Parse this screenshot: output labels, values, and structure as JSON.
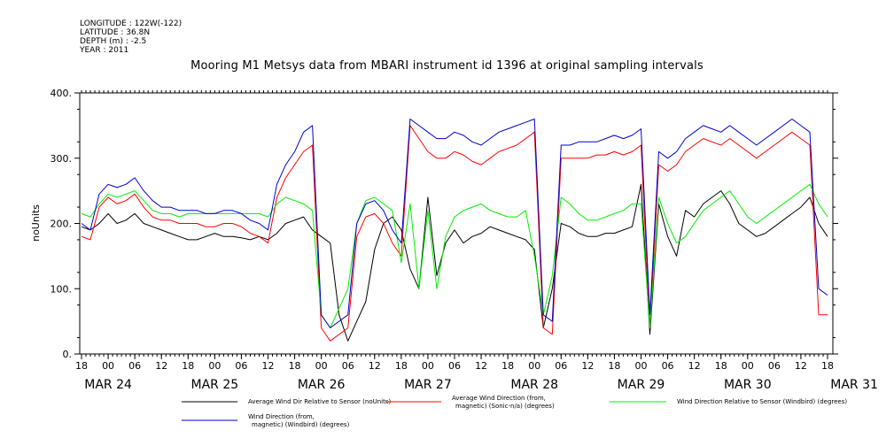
{
  "header": {
    "longitude": "LONGITUDE : 122W(-122)",
    "latitude": "LATITUDE : 36.8N",
    "depth": "DEPTH (m) : -2.5",
    "year": "YEAR : 2011"
  },
  "chart_data": {
    "type": "line",
    "title": "Mooring M1 Metsys data from MBARI instrument id 1396 at original sampling intervals",
    "ylabel": "noUnits",
    "ylim": [
      0,
      400
    ],
    "y_ticks": [
      0,
      100,
      200,
      300,
      400
    ],
    "y_tick_labels": [
      "0.",
      "100.",
      "200.",
      "300.",
      "400."
    ],
    "xlim_hours": [
      0,
      168
    ],
    "x_tick_labels": [
      "18",
      "00",
      "06",
      "12",
      "18",
      "00",
      "06",
      "12",
      "18",
      "00",
      "06",
      "12",
      "18",
      "00",
      "06",
      "12",
      "18",
      "00",
      "06",
      "12",
      "18",
      "00",
      "06",
      "12",
      "18",
      "00",
      "06",
      "12",
      "18"
    ],
    "date_labels": [
      {
        "label": "MAR 24",
        "hour": 6
      },
      {
        "label": "MAR 25",
        "hour": 30
      },
      {
        "label": "MAR 26",
        "hour": 54
      },
      {
        "label": "MAR 27",
        "hour": 78
      },
      {
        "label": "MAR 28",
        "hour": 102
      },
      {
        "label": "MAR 29",
        "hour": 126
      },
      {
        "label": "MAR 30",
        "hour": 150
      },
      {
        "label": "MAR 31",
        "hour": 174
      }
    ],
    "legend_position": "bottom",
    "series": [
      {
        "name": "Average Wind Dir Relative to Sensor (noUnits)",
        "color": "#000000",
        "x": [
          0,
          2,
          4,
          6,
          8,
          10,
          12,
          14,
          16,
          18,
          20,
          22,
          24,
          26,
          28,
          30,
          32,
          34,
          36,
          38,
          40,
          42,
          44,
          46,
          48,
          50,
          52,
          54,
          56,
          58,
          60,
          62,
          64,
          66,
          68,
          70,
          72,
          74,
          76,
          78,
          80,
          82,
          84,
          86,
          88,
          90,
          92,
          94,
          96,
          98,
          100,
          102,
          104,
          106,
          108,
          110,
          112,
          114,
          116,
          118,
          120,
          122,
          124,
          126,
          128,
          130,
          132,
          134,
          136,
          138,
          140,
          142,
          144,
          146,
          148,
          150,
          152,
          154,
          156,
          158,
          160,
          162,
          164,
          166,
          168
        ],
        "values": [
          195,
          190,
          200,
          215,
          200,
          205,
          215,
          200,
          195,
          190,
          185,
          180,
          175,
          175,
          180,
          185,
          180,
          180,
          178,
          175,
          180,
          175,
          185,
          200,
          205,
          210,
          190,
          180,
          170,
          60,
          20,
          50,
          80,
          160,
          200,
          210,
          190,
          130,
          100,
          240,
          120,
          170,
          190,
          170,
          180,
          185,
          195,
          190,
          185,
          180,
          175,
          160,
          40,
          100,
          200,
          195,
          185,
          180,
          180,
          185,
          185,
          190,
          195,
          260,
          30,
          230,
          180,
          150,
          220,
          210,
          230,
          240,
          250,
          230,
          200,
          190,
          180,
          185,
          195,
          205,
          215,
          225,
          240,
          200,
          180
        ]
      },
      {
        "name": "Average Wind Direction (from, magnetic) (Sonic-n/a) (degrees)",
        "color": "#ff0000",
        "x": [
          0,
          2,
          4,
          6,
          8,
          10,
          12,
          14,
          16,
          18,
          20,
          22,
          24,
          26,
          28,
          30,
          32,
          34,
          36,
          38,
          40,
          42,
          44,
          46,
          48,
          50,
          52,
          54,
          56,
          58,
          60,
          62,
          64,
          66,
          68,
          70,
          72,
          74,
          76,
          78,
          80,
          82,
          84,
          86,
          88,
          90,
          92,
          94,
          96,
          98,
          100,
          102,
          104,
          106,
          108,
          110,
          112,
          114,
          116,
          118,
          120,
          122,
          124,
          126,
          128,
          130,
          132,
          134,
          136,
          138,
          140,
          142,
          144,
          146,
          148,
          150,
          152,
          154,
          156,
          158,
          160,
          162,
          164,
          166,
          168
        ],
        "values": [
          180,
          175,
          225,
          240,
          230,
          235,
          245,
          225,
          210,
          205,
          205,
          200,
          200,
          200,
          195,
          195,
          200,
          200,
          195,
          185,
          180,
          170,
          240,
          270,
          290,
          310,
          320,
          40,
          20,
          30,
          40,
          180,
          210,
          215,
          200,
          170,
          150,
          350,
          330,
          310,
          300,
          300,
          310,
          305,
          295,
          290,
          300,
          310,
          315,
          320,
          330,
          340,
          40,
          30,
          300,
          300,
          300,
          300,
          305,
          305,
          310,
          305,
          310,
          320,
          40,
          290,
          280,
          290,
          310,
          320,
          330,
          325,
          320,
          330,
          320,
          310,
          300,
          310,
          320,
          330,
          340,
          330,
          320,
          60,
          60
        ]
      },
      {
        "name": "Wind Direction Relative to Sensor (Windbird) (degrees)",
        "color": "#00ee00",
        "x": [
          0,
          2,
          4,
          6,
          8,
          10,
          12,
          14,
          16,
          18,
          20,
          22,
          24,
          26,
          28,
          30,
          32,
          34,
          36,
          38,
          40,
          42,
          44,
          46,
          48,
          50,
          52,
          54,
          56,
          58,
          60,
          62,
          64,
          66,
          68,
          70,
          72,
          74,
          76,
          78,
          80,
          82,
          84,
          86,
          88,
          90,
          92,
          94,
          96,
          98,
          100,
          102,
          104,
          106,
          108,
          110,
          112,
          114,
          116,
          118,
          120,
          122,
          124,
          126,
          128,
          130,
          132,
          134,
          136,
          138,
          140,
          142,
          144,
          146,
          148,
          150,
          152,
          154,
          156,
          158,
          160,
          162,
          164,
          166,
          168
        ],
        "values": [
          215,
          210,
          230,
          245,
          240,
          245,
          250,
          235,
          220,
          215,
          215,
          210,
          215,
          215,
          215,
          215,
          215,
          215,
          215,
          215,
          215,
          210,
          230,
          240,
          235,
          230,
          220,
          60,
          40,
          70,
          100,
          200,
          235,
          240,
          230,
          220,
          140,
          230,
          100,
          220,
          100,
          180,
          210,
          220,
          225,
          230,
          220,
          215,
          210,
          210,
          220,
          150,
          60,
          120,
          240,
          230,
          215,
          205,
          205,
          210,
          215,
          220,
          230,
          230,
          40,
          240,
          200,
          170,
          180,
          200,
          220,
          230,
          240,
          250,
          230,
          210,
          200,
          210,
          220,
          230,
          240,
          250,
          260,
          230,
          210
        ]
      },
      {
        "name": "Wind Direction (from, magnetic) (Windbird) (degrees)",
        "color": "#0000cc",
        "x": [
          0,
          2,
          4,
          6,
          8,
          10,
          12,
          14,
          16,
          18,
          20,
          22,
          24,
          26,
          28,
          30,
          32,
          34,
          36,
          38,
          40,
          42,
          44,
          46,
          48,
          50,
          52,
          54,
          56,
          58,
          60,
          62,
          64,
          66,
          68,
          70,
          72,
          74,
          76,
          78,
          80,
          82,
          84,
          86,
          88,
          90,
          92,
          94,
          96,
          98,
          100,
          102,
          104,
          106,
          108,
          110,
          112,
          114,
          116,
          118,
          120,
          122,
          124,
          126,
          128,
          130,
          132,
          134,
          136,
          138,
          140,
          142,
          144,
          146,
          148,
          150,
          152,
          154,
          156,
          158,
          160,
          162,
          164,
          166,
          168
        ],
        "values": [
          200,
          190,
          245,
          260,
          255,
          260,
          270,
          250,
          235,
          225,
          225,
          220,
          220,
          220,
          215,
          215,
          220,
          220,
          215,
          205,
          200,
          190,
          260,
          290,
          310,
          340,
          350,
          60,
          40,
          50,
          60,
          200,
          230,
          235,
          220,
          190,
          170,
          360,
          350,
          340,
          330,
          330,
          340,
          335,
          325,
          320,
          330,
          340,
          345,
          350,
          355,
          360,
          60,
          50,
          320,
          320,
          325,
          325,
          325,
          330,
          335,
          330,
          335,
          345,
          60,
          310,
          300,
          310,
          330,
          340,
          350,
          345,
          340,
          350,
          340,
          330,
          320,
          330,
          340,
          350,
          360,
          350,
          340,
          100,
          90
        ]
      }
    ]
  }
}
